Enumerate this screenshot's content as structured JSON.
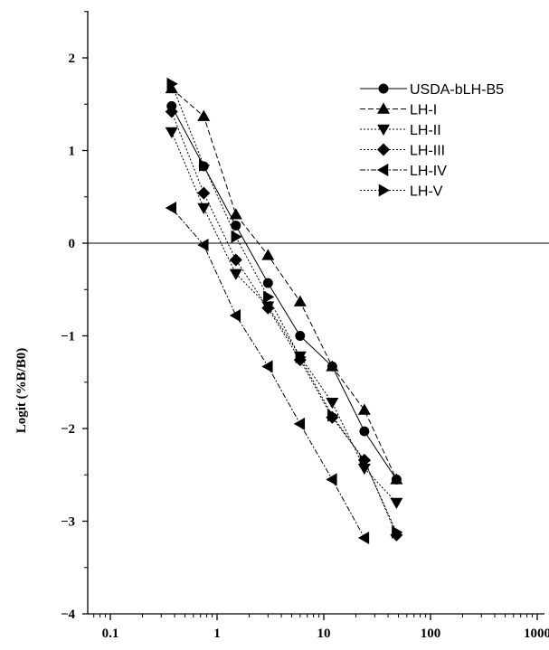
{
  "chart_data": {
    "type": "line",
    "xscale": "log",
    "xlim": [
      0.06,
      1200
    ],
    "ylim": [
      -4,
      2.5
    ],
    "ylabel": "Logit (%B/B0)",
    "xlabel": "",
    "x_ticks": [
      0.1,
      1,
      10,
      100,
      1000
    ],
    "x_tick_labels": [
      "0.1",
      "1",
      "10",
      "100",
      "1000"
    ],
    "y_ticks": [
      -4,
      -3,
      -2,
      -1,
      0,
      1,
      2
    ],
    "y_tick_labels": [
      "−4",
      "−3",
      "−2",
      "−1",
      "0",
      "1",
      "2"
    ],
    "reference_line_y": 0,
    "grid": false,
    "legend_position": "top-right",
    "series": [
      {
        "name": "USDA-bLH-B5",
        "marker": "circle",
        "dash": "solid",
        "x": [
          0.375,
          0.75,
          1.5,
          3,
          6,
          12,
          24,
          48
        ],
        "y": [
          1.48,
          0.83,
          0.19,
          -0.43,
          -1.0,
          -1.33,
          -2.03,
          -2.55
        ]
      },
      {
        "name": "LH-I",
        "marker": "triangle-up",
        "dash": "dashed",
        "x": [
          0.375,
          0.75,
          1.5,
          3,
          6,
          12,
          24,
          48
        ],
        "y": [
          1.67,
          1.37,
          0.31,
          -0.13,
          -0.63,
          -1.33,
          -1.8,
          -2.55
        ]
      },
      {
        "name": "LH-II",
        "marker": "triangle-down",
        "dash": "dotted",
        "x": [
          0.375,
          0.75,
          1.5,
          3,
          6,
          12,
          24,
          48
        ],
        "y": [
          1.2,
          0.38,
          -0.33,
          -0.68,
          -1.22,
          -1.72,
          -2.43,
          -2.8
        ]
      },
      {
        "name": "LH-III",
        "marker": "diamond",
        "dash": "dotted",
        "x": [
          0.375,
          0.75,
          1.5,
          3,
          6,
          12,
          24,
          48
        ],
        "y": [
          1.42,
          0.54,
          -0.18,
          -0.7,
          -1.26,
          -1.88,
          -2.34,
          -3.15
        ]
      },
      {
        "name": "LH-IV",
        "marker": "triangle-left",
        "dash": "dashdot",
        "x": [
          0.375,
          0.75,
          1.5,
          3,
          6,
          12,
          24
        ],
        "y": [
          0.38,
          -0.02,
          -0.78,
          -1.33,
          -1.95,
          -2.55,
          -3.18
        ]
      },
      {
        "name": "LH-V",
        "marker": "triangle-right",
        "dash": "dotted",
        "x": [
          0.375,
          0.75,
          1.5,
          3,
          6,
          12,
          24,
          48
        ],
        "y": [
          1.72,
          0.84,
          0.07,
          -0.58,
          -1.23,
          -1.86,
          -2.35,
          -3.12
        ]
      }
    ]
  }
}
